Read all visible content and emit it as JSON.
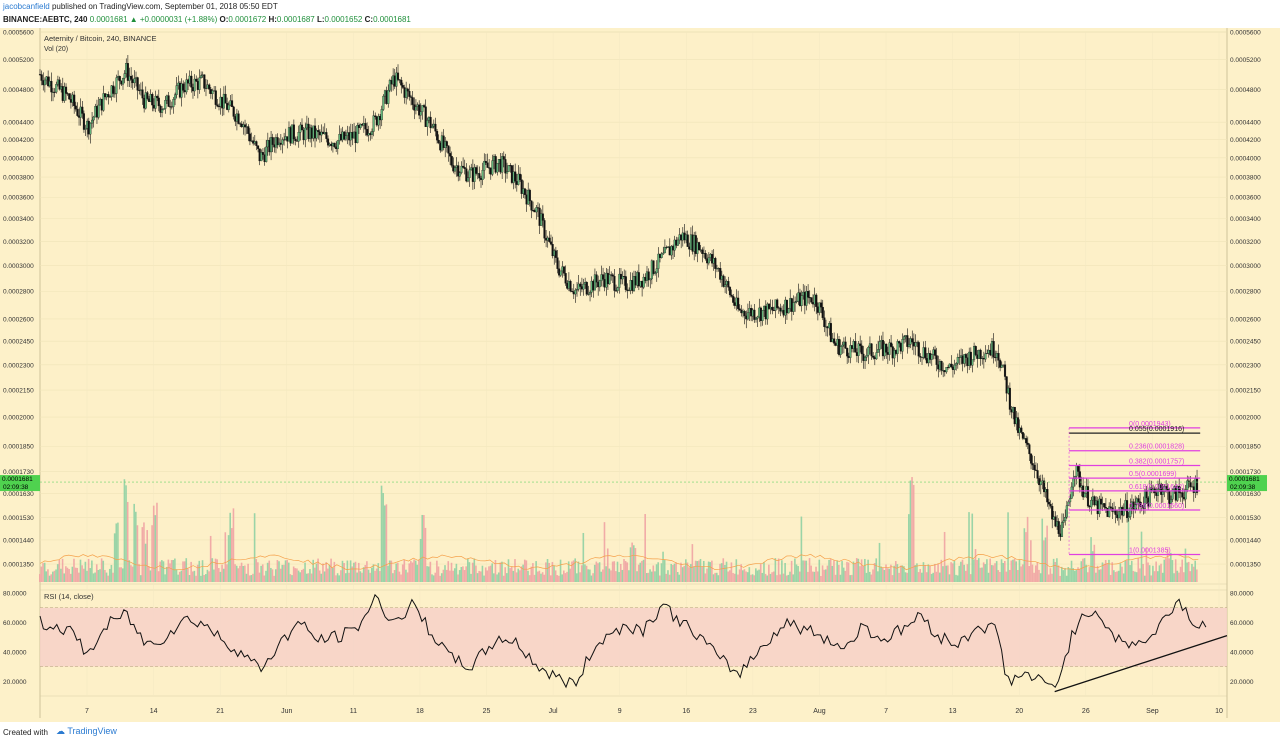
{
  "header": {
    "author": "jacobcanfield",
    "published_text": "published on TradingView.com, September 01, 2018 05:50 EDT",
    "symbol_line": "BINANCE:AEBTC, 240",
    "open_label": "O:",
    "open": "0.0001672",
    "high_label": "H:",
    "high": "0.0001687",
    "low_label": "L:",
    "low": "0.0001652",
    "close_label": "C:",
    "close": "0.0001681",
    "change": "0.0001681 ▲ +0.0000031 (+1.88%)"
  },
  "footer": {
    "created_with": "Created with",
    "brand": "TradingView"
  },
  "chart_data": [
    {
      "type": "candlestick",
      "title": "Aeternity / Bitcoin, 240, BINANCE",
      "volume_label": "Vol (20)",
      "price_ticks": [
        "0.0005600",
        "0.0005200",
        "0.0004800",
        "0.0004400",
        "0.0004200",
        "0.0004000",
        "0.0003800",
        "0.0003600",
        "0.0003400",
        "0.0003200",
        "0.0003000",
        "0.0002800",
        "0.0002600",
        "0.0002450",
        "0.0002300",
        "0.0002150",
        "0.0002000",
        "0.0001850",
        "0.0001730",
        "0.0001630",
        "0.0001530",
        "0.0001440",
        "0.0001350"
      ],
      "price_tick_values": [
        0.00056,
        0.00052,
        0.00048,
        0.00044,
        0.00042,
        0.0004,
        0.00038,
        0.00036,
        0.00034,
        0.00032,
        0.0003,
        0.00028,
        0.00026,
        0.000245,
        0.00023,
        0.000215,
        0.0002,
        0.000185,
        0.000173,
        0.000163,
        0.000153,
        0.000144,
        0.000135
      ],
      "last_price": "0.0001681",
      "countdown": "02:09:38",
      "x_tick_labels": [
        "7",
        "14",
        "21",
        "Jun",
        "11",
        "18",
        "25",
        "Jul",
        "9",
        "16",
        "23",
        "Aug",
        "7",
        "13",
        "20",
        "26",
        "Sep",
        "10"
      ],
      "close_path": [
        [
          0,
          0.0005
        ],
        [
          3,
          0.00047
        ],
        [
          5,
          0.000435
        ],
        [
          7,
          0.000475
        ],
        [
          9,
          0.000505
        ],
        [
          11,
          0.000465
        ],
        [
          13,
          0.00046
        ],
        [
          15,
          0.000485
        ],
        [
          17,
          0.00049
        ],
        [
          19,
          0.000465
        ],
        [
          21,
          0.000445
        ],
        [
          23,
          0.0004
        ],
        [
          25,
          0.000425
        ],
        [
          28,
          0.000428
        ],
        [
          31,
          0.000418
        ],
        [
          33,
          0.000425
        ],
        [
          35,
          0.00044
        ],
        [
          37,
          0.000495
        ],
        [
          39,
          0.000465
        ],
        [
          41,
          0.000435
        ],
        [
          43,
          0.000395
        ],
        [
          45,
          0.000382
        ],
        [
          48,
          0.000395
        ],
        [
          50,
          0.000375
        ],
        [
          52,
          0.000345
        ],
        [
          54,
          0.0003
        ],
        [
          56,
          0.00028
        ],
        [
          59,
          0.00029
        ],
        [
          61,
          0.000285
        ],
        [
          63,
          0.00029
        ],
        [
          65,
          0.000305
        ],
        [
          67,
          0.000325
        ],
        [
          69,
          0.000315
        ],
        [
          71,
          0.000295
        ],
        [
          73,
          0.000265
        ],
        [
          76,
          0.000265
        ],
        [
          78,
          0.00027
        ],
        [
          80,
          0.000275
        ],
        [
          81,
          0.000275
        ],
        [
          83,
          0.000243
        ],
        [
          86,
          0.000237
        ],
        [
          88,
          0.00024
        ],
        [
          89,
          0.00024
        ],
        [
          91,
          0.000245
        ],
        [
          93,
          0.000235
        ],
        [
          95,
          0.000228
        ],
        [
          97,
          0.000235
        ],
        [
          99,
          0.00024
        ],
        [
          100,
          0.00024
        ],
        [
          102,
          0.000195
        ],
        [
          104,
          0.000175
        ],
        [
          106,
          0.00015
        ],
        [
          107,
          0.000148
        ],
        [
          108,
          0.000175
        ],
        [
          109,
          0.000165
        ],
        [
          110,
          0.000158
        ],
        [
          112,
          0.000155
        ],
        [
          114,
          0.000157
        ],
        [
          116,
          0.000162
        ],
        [
          117,
          0.000167
        ],
        [
          118,
          0.000162
        ],
        [
          120,
          0.000165
        ],
        [
          121,
          0.000168
        ]
      ],
      "volume_spikes": [
        [
          8,
          0.45
        ],
        [
          9,
          0.7
        ],
        [
          10,
          0.55
        ],
        [
          11,
          0.42
        ],
        [
          12,
          0.6
        ],
        [
          20,
          0.5
        ],
        [
          36,
          0.75
        ],
        [
          40,
          0.45
        ],
        [
          62,
          0.3
        ],
        [
          91,
          0.75
        ],
        [
          103,
          0.5
        ],
        [
          105,
          0.45
        ],
        [
          110,
          0.3
        ],
        [
          118,
          0.25
        ]
      ],
      "fibonacci": [
        {
          "label": "0(0.0001943)",
          "value": 0.0001943
        },
        {
          "label": "0.055(0.0001916)",
          "value": 0.0001916
        },
        {
          "label": "0.236(0.0001828)",
          "value": 0.0001828
        },
        {
          "label": "0.382(0.0001757)",
          "value": 0.0001757
        },
        {
          "label": "0.5(0.0001699)",
          "value": 0.0001699
        },
        {
          "label": "0.618(0.0001642)",
          "value": 0.0001642
        },
        {
          "label": "0.786(0.0001560)",
          "value": 0.000156
        },
        {
          "label": "1(0.0001385)",
          "value": 0.0001385
        }
      ]
    },
    {
      "type": "line",
      "title": "RSI (14, close)",
      "ylim": [
        10,
        82
      ],
      "y_ticks": [
        "80.0000",
        "60.0000",
        "40.0000",
        "20.0000"
      ],
      "y_tick_values": [
        80,
        60,
        40,
        20
      ],
      "band": [
        30,
        70
      ],
      "trendline": {
        "x": [
          106,
          124
        ],
        "y": [
          13,
          51
        ]
      },
      "rsi_path": [
        [
          0,
          60
        ],
        [
          3,
          55
        ],
        [
          5,
          38
        ],
        [
          7,
          58
        ],
        [
          9,
          66
        ],
        [
          11,
          45
        ],
        [
          13,
          50
        ],
        [
          15,
          62
        ],
        [
          17,
          60
        ],
        [
          19,
          48
        ],
        [
          21,
          40
        ],
        [
          23,
          28
        ],
        [
          25,
          45
        ],
        [
          27,
          60
        ],
        [
          29,
          48
        ],
        [
          31,
          50
        ],
        [
          33,
          55
        ],
        [
          35,
          76
        ],
        [
          37,
          60
        ],
        [
          39,
          72
        ],
        [
          41,
          52
        ],
        [
          43,
          35
        ],
        [
          45,
          30
        ],
        [
          48,
          50
        ],
        [
          50,
          45
        ],
        [
          52,
          30
        ],
        [
          54,
          22
        ],
        [
          56,
          18
        ],
        [
          58,
          45
        ],
        [
          61,
          58
        ],
        [
          63,
          55
        ],
        [
          65,
          72
        ],
        [
          67,
          60
        ],
        [
          69,
          50
        ],
        [
          71,
          35
        ],
        [
          73,
          25
        ],
        [
          76,
          48
        ],
        [
          78,
          60
        ],
        [
          80,
          55
        ],
        [
          82,
          50
        ],
        [
          84,
          42
        ],
        [
          86,
          58
        ],
        [
          88,
          48
        ],
        [
          90,
          55
        ],
        [
          92,
          65
        ],
        [
          94,
          50
        ],
        [
          96,
          45
        ],
        [
          98,
          58
        ],
        [
          100,
          55
        ],
        [
          101,
          20
        ],
        [
          103,
          25
        ],
        [
          105,
          18
        ],
        [
          106,
          15
        ],
        [
          108,
          55
        ],
        [
          110,
          70
        ],
        [
          111,
          62
        ],
        [
          113,
          45
        ],
        [
          116,
          48
        ],
        [
          118,
          68
        ],
        [
          119,
          75
        ],
        [
          121,
          55
        ],
        [
          122,
          62
        ]
      ]
    }
  ]
}
